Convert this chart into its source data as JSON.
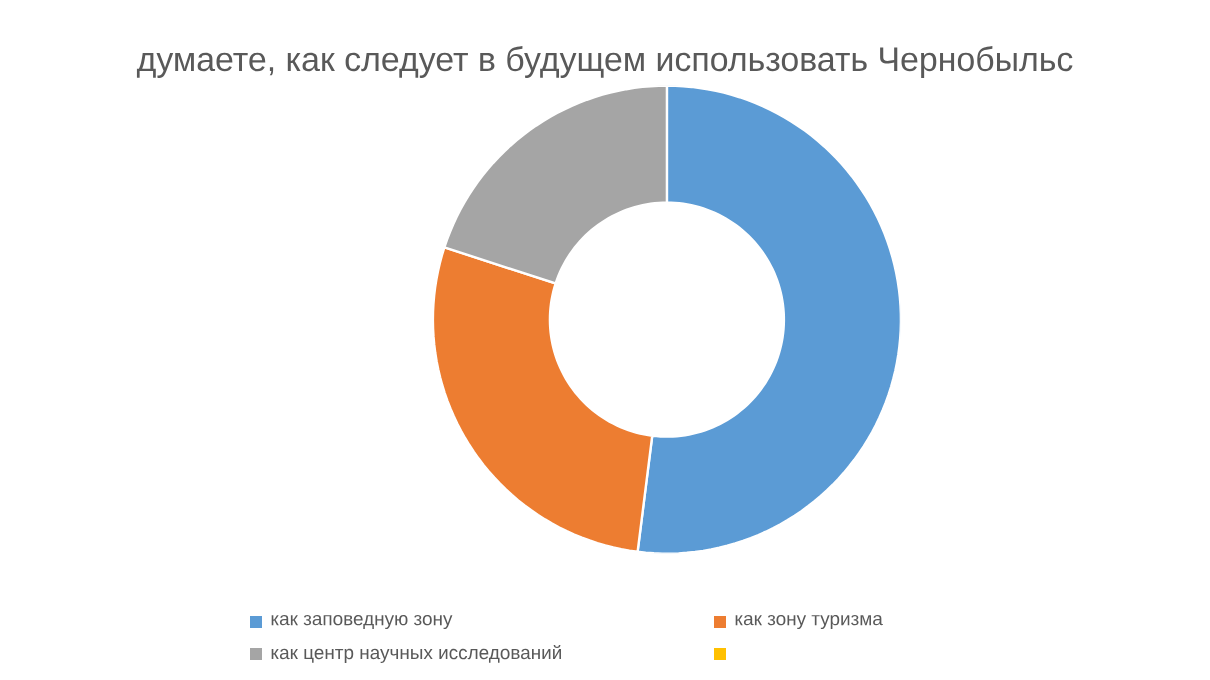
{
  "chart_data": {
    "type": "donut",
    "title": "думаете, как следует в будущем использовать Чернобыльс",
    "categories": [
      "как заповедную зону",
      "как зону туризма",
      "как центр научных исследований",
      null
    ],
    "values": [
      52,
      28,
      20,
      0
    ],
    "colors": [
      "#5b9bd5",
      "#ed7d31",
      "#a5a5a5",
      "#ffc000"
    ],
    "legend": "bottom"
  }
}
